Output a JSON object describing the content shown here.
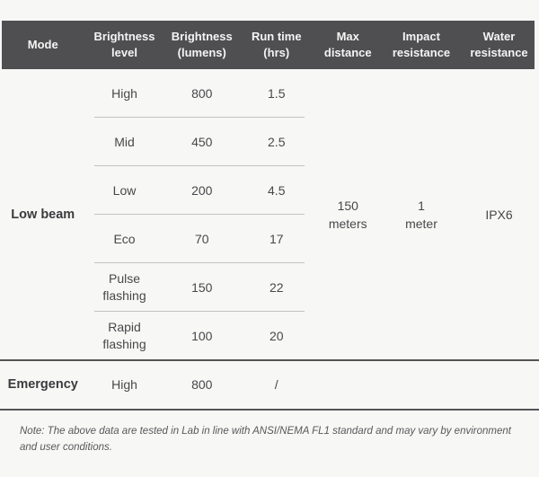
{
  "colors": {
    "header_bg": "#4f4f51",
    "header_text": "#f4f4f4",
    "page_bg": "#f7f7f6",
    "body_text": "#48484a",
    "row_divider": "#c2c2c2",
    "section_line": "#545456"
  },
  "header": {
    "mode": "Mode",
    "brightness_level": "Brightness\nlevel",
    "brightness_lumens": "Brightness\n(lumens)",
    "run_time": "Run time\n(hrs)",
    "max_distance": "Max\ndistance",
    "impact_resistance": "Impact\nresistance",
    "water_resistance": "Water\nresistance"
  },
  "low_beam": {
    "mode": "Low beam",
    "rows": [
      {
        "level": "High",
        "lumens": "800",
        "run_time": "1.5"
      },
      {
        "level": "Mid",
        "lumens": "450",
        "run_time": "2.5"
      },
      {
        "level": "Low",
        "lumens": "200",
        "run_time": "4.5"
      },
      {
        "level": "Eco",
        "lumens": "70",
        "run_time": "17"
      },
      {
        "level": "Pulse\nflashing",
        "lumens": "150",
        "run_time": "22"
      },
      {
        "level": "Rapid\nflashing",
        "lumens": "100",
        "run_time": "20"
      }
    ],
    "max_distance": "150\nmeters",
    "impact_resistance": "1\nmeter",
    "water_resistance": "IPX6"
  },
  "emergency": {
    "mode": "Emergency",
    "level": "High",
    "lumens": "800",
    "run_time": "/"
  },
  "note": "Note: The above data are tested in Lab in line with ANSI/NEMA FL1 standard and may vary by environment\nand user conditions.",
  "chart_data": {
    "type": "table",
    "columns": [
      "Mode",
      "Brightness level",
      "Brightness (lumens)",
      "Run time (hrs)",
      "Max distance",
      "Impact resistance",
      "Water resistance"
    ],
    "rows": [
      [
        "Low beam",
        "High",
        "800",
        "1.5",
        "150 meters",
        "1 meter",
        "IPX6"
      ],
      [
        "Low beam",
        "Mid",
        "450",
        "2.5",
        "150 meters",
        "1 meter",
        "IPX6"
      ],
      [
        "Low beam",
        "Low",
        "200",
        "4.5",
        "150 meters",
        "1 meter",
        "IPX6"
      ],
      [
        "Low beam",
        "Eco",
        "70",
        "17",
        "150 meters",
        "1 meter",
        "IPX6"
      ],
      [
        "Low beam",
        "Pulse flashing",
        "150",
        "22",
        "150 meters",
        "1 meter",
        "IPX6"
      ],
      [
        "Low beam",
        "Rapid flashing",
        "100",
        "20",
        "150 meters",
        "1 meter",
        "IPX6"
      ],
      [
        "Emergency",
        "High",
        "800",
        "/",
        "",
        "",
        ""
      ]
    ],
    "note": "Note: The above data are tested in Lab in line with ANSI/NEMA FL1 standard and may vary by environment and user conditions."
  }
}
